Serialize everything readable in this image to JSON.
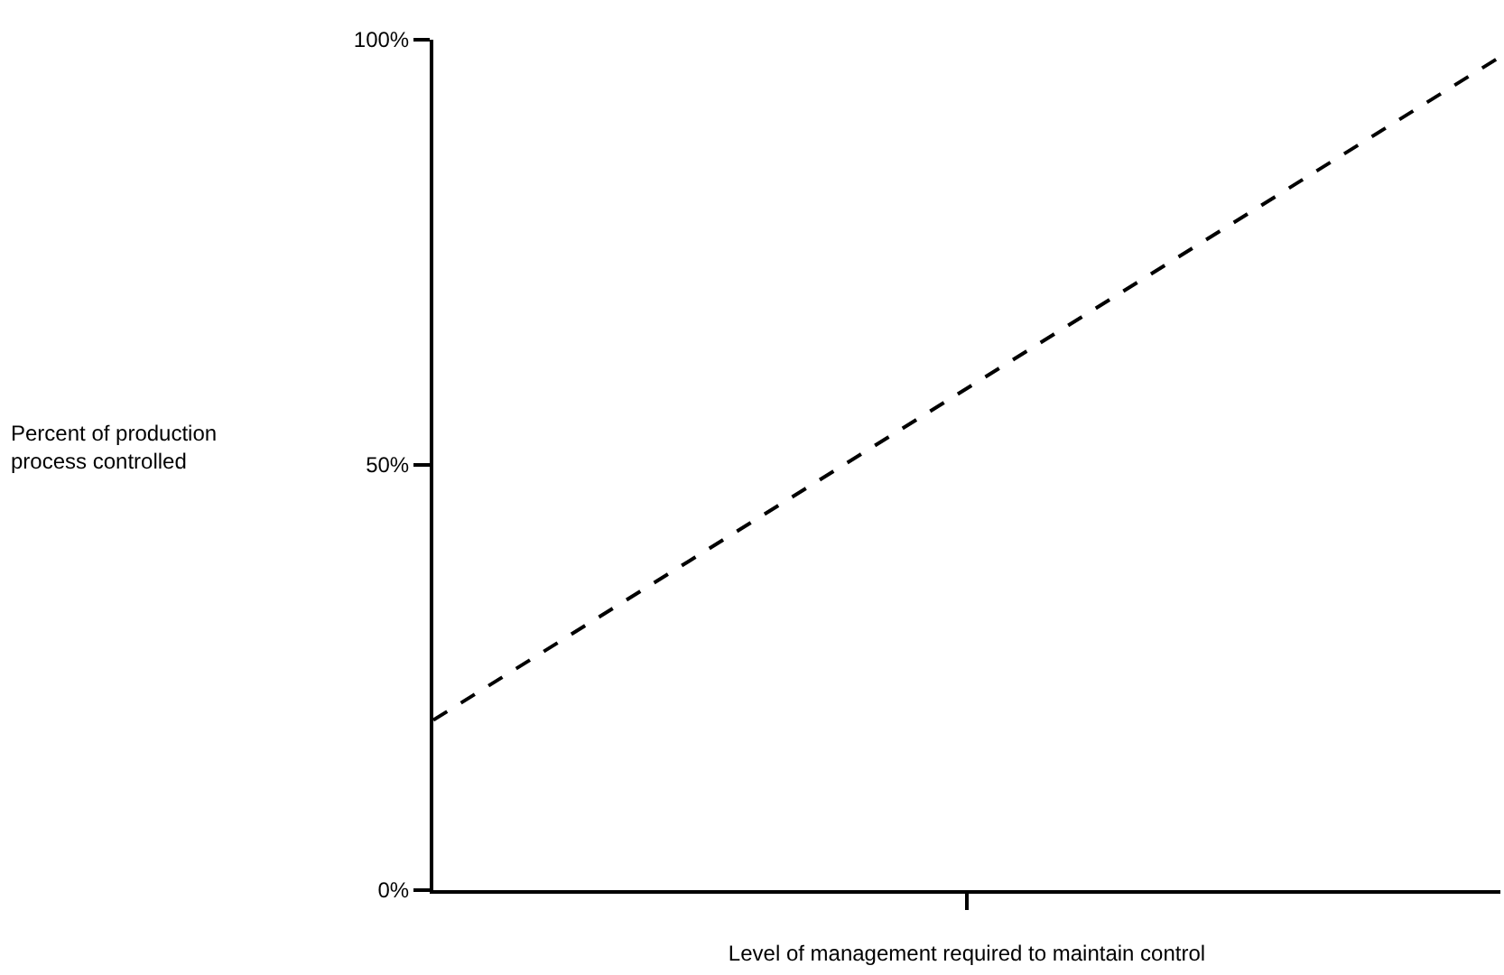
{
  "chart_data": {
    "type": "line",
    "annotations": [
      "Percent of production\nprocess controlled"
    ],
    "xlabel": "Level of management required to maintain control",
    "categories": [
      null,
      null,
      null
    ],
    "series": [
      {
        "color": "#000000",
        "values": [
          20,
          59,
          98
        ]
      }
    ],
    "ylim": [
      0,
      100
    ],
    "yticks": [
      {
        "value": 0,
        "label": "0%"
      },
      {
        "value": 50,
        "label": "50%"
      },
      {
        "value": 100,
        "label": "100%"
      }
    ],
    "tick_labels": "y",
    "line_style": "dashed",
    "marker": "none"
  }
}
